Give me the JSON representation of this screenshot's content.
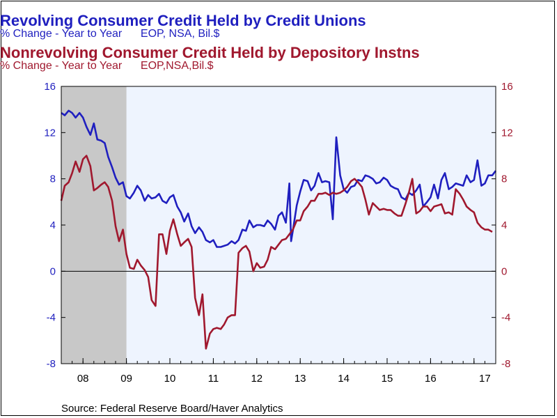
{
  "titles": {
    "series1_title": "Revolving Consumer Credit Held by Credit Unions",
    "series1_subtitle": "% Change - Year to Year      EOP, NSA, Bil.$",
    "series2_title": "Nonrevolving Consumer Credit Held by Depository Instns",
    "series2_subtitle": "% Change - Year to Year      EOP,NSA,Bil.$"
  },
  "source": "Source:  Federal Reserve Board/Haver Analytics",
  "colors": {
    "series1": "#1f1fbf",
    "series2": "#a0182e",
    "plot_bg": "#eef4fe",
    "recession": "#c8c8c8"
  },
  "chart_data": {
    "type": "line",
    "x_unit": "year (decimal)",
    "xlim": [
      2007.5,
      2017.5
    ],
    "ylim": [
      -8,
      16
    ],
    "y_ticks": [
      -8,
      -4,
      0,
      4,
      8,
      12,
      16
    ],
    "y_tick_labels_left": [
      "-8",
      "-4",
      "0",
      "4",
      "8",
      "12",
      "16"
    ],
    "y_tick_labels_right": [
      "-8",
      "-4",
      "0",
      "4",
      "8",
      "12",
      "16"
    ],
    "x_tick_labels": [
      "08",
      "09",
      "10",
      "11",
      "12",
      "13",
      "14",
      "15",
      "16",
      "17"
    ],
    "recession_shading": [
      2007.5,
      2009.0
    ],
    "zero_line": true,
    "legend": "none (series identified by colored titles at top)",
    "series": [
      {
        "name": "Revolving Consumer Credit Held by Credit Unions",
        "axis": "left",
        "points": [
          [
            2007.5,
            13.7
          ],
          [
            2007.58,
            13.5
          ],
          [
            2007.67,
            13.9
          ],
          [
            2007.75,
            13.7
          ],
          [
            2007.83,
            13.3
          ],
          [
            2007.92,
            13.7
          ],
          [
            2008.0,
            13.3
          ],
          [
            2008.08,
            12.5
          ],
          [
            2008.17,
            11.8
          ],
          [
            2008.25,
            12.8
          ],
          [
            2008.33,
            11.4
          ],
          [
            2008.42,
            11.3
          ],
          [
            2008.5,
            11.1
          ],
          [
            2008.58,
            9.9
          ],
          [
            2008.67,
            9.0
          ],
          [
            2008.75,
            8.1
          ],
          [
            2008.83,
            7.5
          ],
          [
            2008.92,
            7.7
          ],
          [
            2009.0,
            6.5
          ],
          [
            2009.08,
            6.3
          ],
          [
            2009.17,
            6.8
          ],
          [
            2009.25,
            7.4
          ],
          [
            2009.33,
            7.0
          ],
          [
            2009.42,
            6.1
          ],
          [
            2009.5,
            6.6
          ],
          [
            2009.58,
            6.3
          ],
          [
            2009.67,
            6.4
          ],
          [
            2009.75,
            6.7
          ],
          [
            2009.83,
            6.1
          ],
          [
            2009.92,
            5.9
          ],
          [
            2010.0,
            6.4
          ],
          [
            2010.08,
            6.6
          ],
          [
            2010.17,
            5.6
          ],
          [
            2010.25,
            5.1
          ],
          [
            2010.33,
            4.3
          ],
          [
            2010.42,
            5.0
          ],
          [
            2010.5,
            3.9
          ],
          [
            2010.58,
            3.3
          ],
          [
            2010.67,
            3.8
          ],
          [
            2010.75,
            3.4
          ],
          [
            2010.83,
            2.7
          ],
          [
            2010.92,
            2.5
          ],
          [
            2011.0,
            2.7
          ],
          [
            2011.08,
            2.1
          ],
          [
            2011.17,
            2.1
          ],
          [
            2011.25,
            2.2
          ],
          [
            2011.33,
            2.3
          ],
          [
            2011.42,
            2.6
          ],
          [
            2011.5,
            2.4
          ],
          [
            2011.58,
            2.7
          ],
          [
            2011.67,
            3.6
          ],
          [
            2011.75,
            3.5
          ],
          [
            2011.83,
            4.4
          ],
          [
            2011.92,
            3.8
          ],
          [
            2012.0,
            4.0
          ],
          [
            2012.08,
            4.0
          ],
          [
            2012.17,
            3.9
          ],
          [
            2012.25,
            4.4
          ],
          [
            2012.33,
            4.1
          ],
          [
            2012.42,
            3.6
          ],
          [
            2012.5,
            4.8
          ],
          [
            2012.58,
            5.1
          ],
          [
            2012.67,
            4.2
          ],
          [
            2012.75,
            7.6
          ],
          [
            2012.79,
            2.6
          ],
          [
            2012.83,
            3.5
          ],
          [
            2012.92,
            5.7
          ],
          [
            2013.0,
            6.9
          ],
          [
            2013.08,
            7.9
          ],
          [
            2013.17,
            7.8
          ],
          [
            2013.25,
            7.0
          ],
          [
            2013.33,
            7.4
          ],
          [
            2013.42,
            8.5
          ],
          [
            2013.5,
            7.7
          ],
          [
            2013.58,
            7.8
          ],
          [
            2013.67,
            7.7
          ],
          [
            2013.75,
            4.5
          ],
          [
            2013.83,
            11.6
          ],
          [
            2013.92,
            8.3
          ],
          [
            2014.0,
            7.1
          ],
          [
            2014.08,
            6.8
          ],
          [
            2014.17,
            7.3
          ],
          [
            2014.25,
            7.4
          ],
          [
            2014.33,
            7.9
          ],
          [
            2014.42,
            7.8
          ],
          [
            2014.5,
            8.3
          ],
          [
            2014.58,
            8.2
          ],
          [
            2014.67,
            8.0
          ],
          [
            2014.75,
            7.6
          ],
          [
            2014.83,
            7.7
          ],
          [
            2014.92,
            8.1
          ],
          [
            2015.0,
            7.9
          ],
          [
            2015.08,
            7.4
          ],
          [
            2015.17,
            7.2
          ],
          [
            2015.25,
            7.1
          ],
          [
            2015.33,
            6.4
          ],
          [
            2015.42,
            6.2
          ],
          [
            2015.5,
            6.8
          ],
          [
            2015.58,
            6.6
          ],
          [
            2015.67,
            7.0
          ],
          [
            2015.75,
            7.5
          ],
          [
            2015.83,
            5.6
          ],
          [
            2015.92,
            6.0
          ],
          [
            2016.0,
            6.4
          ],
          [
            2016.08,
            7.5
          ],
          [
            2016.17,
            6.3
          ],
          [
            2016.25,
            7.9
          ],
          [
            2016.33,
            8.5
          ],
          [
            2016.42,
            7.1
          ],
          [
            2016.5,
            7.3
          ],
          [
            2016.58,
            7.6
          ],
          [
            2016.67,
            7.5
          ],
          [
            2016.75,
            7.4
          ],
          [
            2016.83,
            8.3
          ],
          [
            2016.92,
            7.7
          ],
          [
            2017.0,
            7.9
          ],
          [
            2017.08,
            9.6
          ],
          [
            2017.17,
            7.4
          ],
          [
            2017.25,
            7.6
          ],
          [
            2017.33,
            8.3
          ],
          [
            2017.42,
            8.3
          ],
          [
            2017.5,
            8.7
          ]
        ]
      },
      {
        "name": "Nonrevolving Consumer Credit Held by Depository Instns",
        "axis": "right",
        "points": [
          [
            2007.5,
            6.1
          ],
          [
            2007.58,
            7.4
          ],
          [
            2007.67,
            7.7
          ],
          [
            2007.75,
            8.5
          ],
          [
            2007.83,
            9.5
          ],
          [
            2007.92,
            8.6
          ],
          [
            2008.0,
            9.7
          ],
          [
            2008.08,
            10.0
          ],
          [
            2008.17,
            9.1
          ],
          [
            2008.25,
            7.0
          ],
          [
            2008.33,
            7.2
          ],
          [
            2008.42,
            7.5
          ],
          [
            2008.5,
            7.7
          ],
          [
            2008.58,
            7.3
          ],
          [
            2008.67,
            6.1
          ],
          [
            2008.75,
            3.9
          ],
          [
            2008.83,
            2.6
          ],
          [
            2008.92,
            3.6
          ],
          [
            2009.0,
            1.5
          ],
          [
            2009.08,
            0.3
          ],
          [
            2009.17,
            0.2
          ],
          [
            2009.25,
            1.0
          ],
          [
            2009.33,
            0.5
          ],
          [
            2009.42,
            0.1
          ],
          [
            2009.5,
            -0.5
          ],
          [
            2009.58,
            -2.5
          ],
          [
            2009.67,
            -3.0
          ],
          [
            2009.75,
            3.2
          ],
          [
            2009.83,
            3.2
          ],
          [
            2009.92,
            1.5
          ],
          [
            2010.0,
            3.5
          ],
          [
            2010.08,
            4.5
          ],
          [
            2010.17,
            3.2
          ],
          [
            2010.25,
            2.2
          ],
          [
            2010.33,
            2.5
          ],
          [
            2010.42,
            2.8
          ],
          [
            2010.5,
            2.1
          ],
          [
            2010.58,
            -2.3
          ],
          [
            2010.67,
            -3.8
          ],
          [
            2010.75,
            -2.0
          ],
          [
            2010.83,
            -6.7
          ],
          [
            2010.92,
            -5.4
          ],
          [
            2011.0,
            -5.0
          ],
          [
            2011.08,
            -4.9
          ],
          [
            2011.17,
            -5.0
          ],
          [
            2011.25,
            -4.6
          ],
          [
            2011.33,
            -4.0
          ],
          [
            2011.42,
            -3.8
          ],
          [
            2011.5,
            -3.8
          ],
          [
            2011.58,
            1.6
          ],
          [
            2011.67,
            2.0
          ],
          [
            2011.75,
            2.2
          ],
          [
            2011.83,
            1.7
          ],
          [
            2011.92,
            0.0
          ],
          [
            2012.0,
            0.7
          ],
          [
            2012.08,
            0.3
          ],
          [
            2012.17,
            0.4
          ],
          [
            2012.25,
            1.0
          ],
          [
            2012.33,
            2.1
          ],
          [
            2012.42,
            1.9
          ],
          [
            2012.5,
            2.3
          ],
          [
            2012.58,
            2.7
          ],
          [
            2012.67,
            2.8
          ],
          [
            2012.75,
            3.2
          ],
          [
            2012.83,
            3.6
          ],
          [
            2012.92,
            4.4
          ],
          [
            2013.0,
            4.4
          ],
          [
            2013.08,
            5.2
          ],
          [
            2013.17,
            5.6
          ],
          [
            2013.25,
            6.1
          ],
          [
            2013.33,
            6.1
          ],
          [
            2013.42,
            6.7
          ],
          [
            2013.5,
            6.7
          ],
          [
            2013.58,
            6.8
          ],
          [
            2013.67,
            6.6
          ],
          [
            2013.75,
            6.8
          ],
          [
            2013.83,
            6.7
          ],
          [
            2013.92,
            6.8
          ],
          [
            2014.0,
            7.0
          ],
          [
            2014.08,
            7.3
          ],
          [
            2014.17,
            7.8
          ],
          [
            2014.25,
            8.0
          ],
          [
            2014.33,
            7.7
          ],
          [
            2014.42,
            7.3
          ],
          [
            2014.5,
            6.2
          ],
          [
            2014.58,
            4.9
          ],
          [
            2014.67,
            5.9
          ],
          [
            2014.75,
            5.6
          ],
          [
            2014.83,
            5.3
          ],
          [
            2014.92,
            5.4
          ],
          [
            2015.0,
            5.3
          ],
          [
            2015.08,
            5.3
          ],
          [
            2015.17,
            5.0
          ],
          [
            2015.25,
            4.8
          ],
          [
            2015.33,
            4.8
          ],
          [
            2015.42,
            5.8
          ],
          [
            2015.5,
            6.8
          ],
          [
            2015.58,
            8.0
          ],
          [
            2015.67,
            5.0
          ],
          [
            2015.75,
            5.2
          ],
          [
            2015.83,
            5.6
          ],
          [
            2015.92,
            5.6
          ],
          [
            2016.0,
            5.2
          ],
          [
            2016.08,
            5.6
          ],
          [
            2016.17,
            5.7
          ],
          [
            2016.25,
            5.8
          ],
          [
            2016.33,
            5.0
          ],
          [
            2016.42,
            5.1
          ],
          [
            2016.5,
            4.9
          ],
          [
            2016.58,
            7.1
          ],
          [
            2016.67,
            6.7
          ],
          [
            2016.75,
            6.2
          ],
          [
            2016.83,
            5.6
          ],
          [
            2016.92,
            5.3
          ],
          [
            2017.0,
            5.1
          ],
          [
            2017.08,
            4.2
          ],
          [
            2017.17,
            3.8
          ],
          [
            2017.25,
            3.6
          ],
          [
            2017.33,
            3.6
          ],
          [
            2017.42,
            3.4
          ]
        ]
      }
    ]
  }
}
